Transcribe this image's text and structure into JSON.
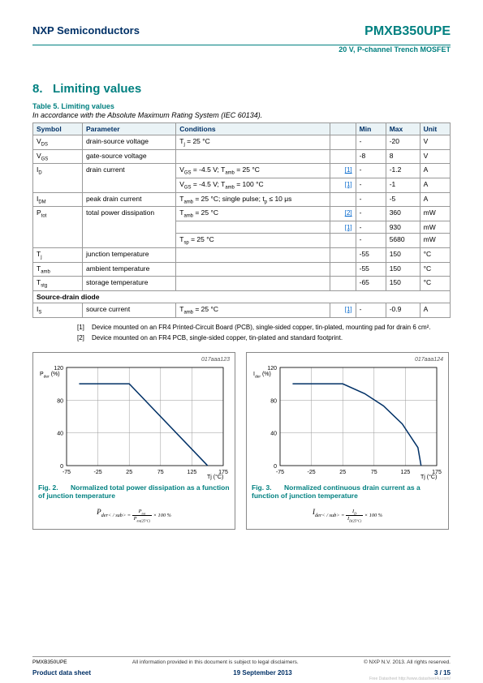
{
  "header": {
    "company": "NXP Semiconductors",
    "product": "PMXB350UPE",
    "subtitle": "20 V, P-channel Trench MOSFET"
  },
  "section": {
    "number": "8.",
    "title": "Limiting values"
  },
  "table": {
    "title": "Table 5.    Limiting values",
    "sub": "In accordance with the Absolute Maximum Rating System (IEC 60134).",
    "cols": [
      "Symbol",
      "Parameter",
      "Conditions",
      "",
      "Min",
      "Max",
      "Unit"
    ],
    "widths": [
      55,
      115,
      200,
      25,
      30,
      35,
      30
    ],
    "rows": [
      {
        "sym": "V<sub>DS</sub>",
        "param": "drain-source voltage",
        "cond": "T<sub>j</sub> = 25 °C",
        "ref": "",
        "min": "-",
        "max": "-20",
        "unit": "V"
      },
      {
        "sym": "V<sub>GS</sub>",
        "param": "gate-source voltage",
        "cond": "",
        "ref": "",
        "min": "-8",
        "max": "8",
        "unit": "V"
      },
      {
        "sym": "I<sub>D</sub>",
        "param": "drain current",
        "cond": "V<sub>GS</sub> = -4.5 V; T<sub>amb</sub> = 25 °C",
        "ref": "[1]",
        "min": "-",
        "max": "-1.2",
        "unit": "A",
        "rowspan": 2
      },
      {
        "sym": "",
        "param": "",
        "cond": "V<sub>GS</sub> = -4.5 V; T<sub>amb</sub> = 100 °C",
        "ref": "[1]",
        "min": "-",
        "max": "-1",
        "unit": "A"
      },
      {
        "sym": "I<sub>DM</sub>",
        "param": "peak drain current",
        "cond": "T<sub>amb</sub> = 25 °C; single pulse; t<sub>p</sub> ≤ 10 μs",
        "ref": "",
        "min": "-",
        "max": "-5",
        "unit": "A"
      },
      {
        "sym": "P<sub>tot</sub>",
        "param": "total power dissipation",
        "cond": "T<sub>amb</sub> = 25 °C",
        "ref": "[2]",
        "min": "-",
        "max": "360",
        "unit": "mW",
        "rowspan": 3
      },
      {
        "sym": "",
        "param": "",
        "cond": "",
        "ref": "[1]",
        "min": "-",
        "max": "930",
        "unit": "mW"
      },
      {
        "sym": "",
        "param": "",
        "cond": "T<sub>sp</sub> = 25 °C",
        "ref": "",
        "min": "-",
        "max": "5680",
        "unit": "mW"
      },
      {
        "sym": "T<sub>j</sub>",
        "param": "junction temperature",
        "cond": "",
        "ref": "",
        "min": "-55",
        "max": "150",
        "unit": "°C"
      },
      {
        "sym": "T<sub>amb</sub>",
        "param": "ambient temperature",
        "cond": "",
        "ref": "",
        "min": "-55",
        "max": "150",
        "unit": "°C"
      },
      {
        "sym": "T<sub>stg</sub>",
        "param": "storage temperature",
        "cond": "",
        "ref": "",
        "min": "-65",
        "max": "150",
        "unit": "°C"
      }
    ],
    "section_row": "Source-drain diode",
    "diode_rows": [
      {
        "sym": "I<sub>S</sub>",
        "param": "source current",
        "cond": "T<sub>amb</sub> = 25 °C",
        "ref": "[1]",
        "min": "-",
        "max": "-0.9",
        "unit": "A"
      }
    ]
  },
  "notes": [
    {
      "n": "[1]",
      "t": "Device mounted on an FR4 Printed-Circuit Board (PCB), single-sided copper, tin-plated, mounting pad for drain 6 cm²."
    },
    {
      "n": "[2]",
      "t": "Device mounted on an FR4 PCB, single-sided copper, tin-plated and standard footprint."
    }
  ],
  "chart1": {
    "id": "017aaa123",
    "ylabel": "P<sub>der</sub> (%)",
    "xlabel": "T<sub>j</sub> (°C)",
    "xlim": [
      -75,
      175
    ],
    "xticks": [
      -75,
      -25,
      25,
      75,
      125,
      175
    ],
    "ylim": [
      0,
      120
    ],
    "yticks": [
      0,
      40,
      80,
      120
    ],
    "line_color": "#003066",
    "grid_color": "#999999",
    "line_points": [
      [
        -55,
        100
      ],
      [
        25,
        100
      ],
      [
        150,
        0
      ]
    ],
    "caption_num": "Fig. 2.",
    "caption": "Normalized total power dissipation as a function of junction temperature",
    "formula": "P<sub>der</sub> = P<sub>tot</sub> / P<sub>tot(25°C)</sub> × 100 %"
  },
  "chart2": {
    "id": "017aaa124",
    "ylabel": "I<sub>der</sub> (%)",
    "xlabel": "T<sub>j</sub> (°C)",
    "xlim": [
      -75,
      175
    ],
    "xticks": [
      -75,
      -25,
      25,
      75,
      125,
      175
    ],
    "ylim": [
      0,
      120
    ],
    "yticks": [
      0,
      40,
      80,
      120
    ],
    "line_color": "#003066",
    "grid_color": "#999999",
    "line_points": [
      [
        -55,
        100
      ],
      [
        25,
        100
      ],
      [
        60,
        88
      ],
      [
        90,
        73
      ],
      [
        120,
        51
      ],
      [
        145,
        22
      ],
      [
        150,
        0
      ]
    ],
    "caption_num": "Fig. 3.",
    "caption": "Normalized continuous drain current as a function of junction temperature",
    "formula": "I<sub>der</sub> = I<sub>D</sub> / I<sub>D(25°C)</sub> × 100 %"
  },
  "footer": {
    "l1": "PMXB350UPE",
    "mid": "All information provided in this document is subject to legal disclaimers.",
    "r": "© NXP N.V. 2013. All rights reserved.",
    "l2": "Product data sheet",
    "date": "19 September 2013",
    "page": "3 / 15",
    "tiny": "Free Datasheet http://www.datasheet4u.com/"
  }
}
